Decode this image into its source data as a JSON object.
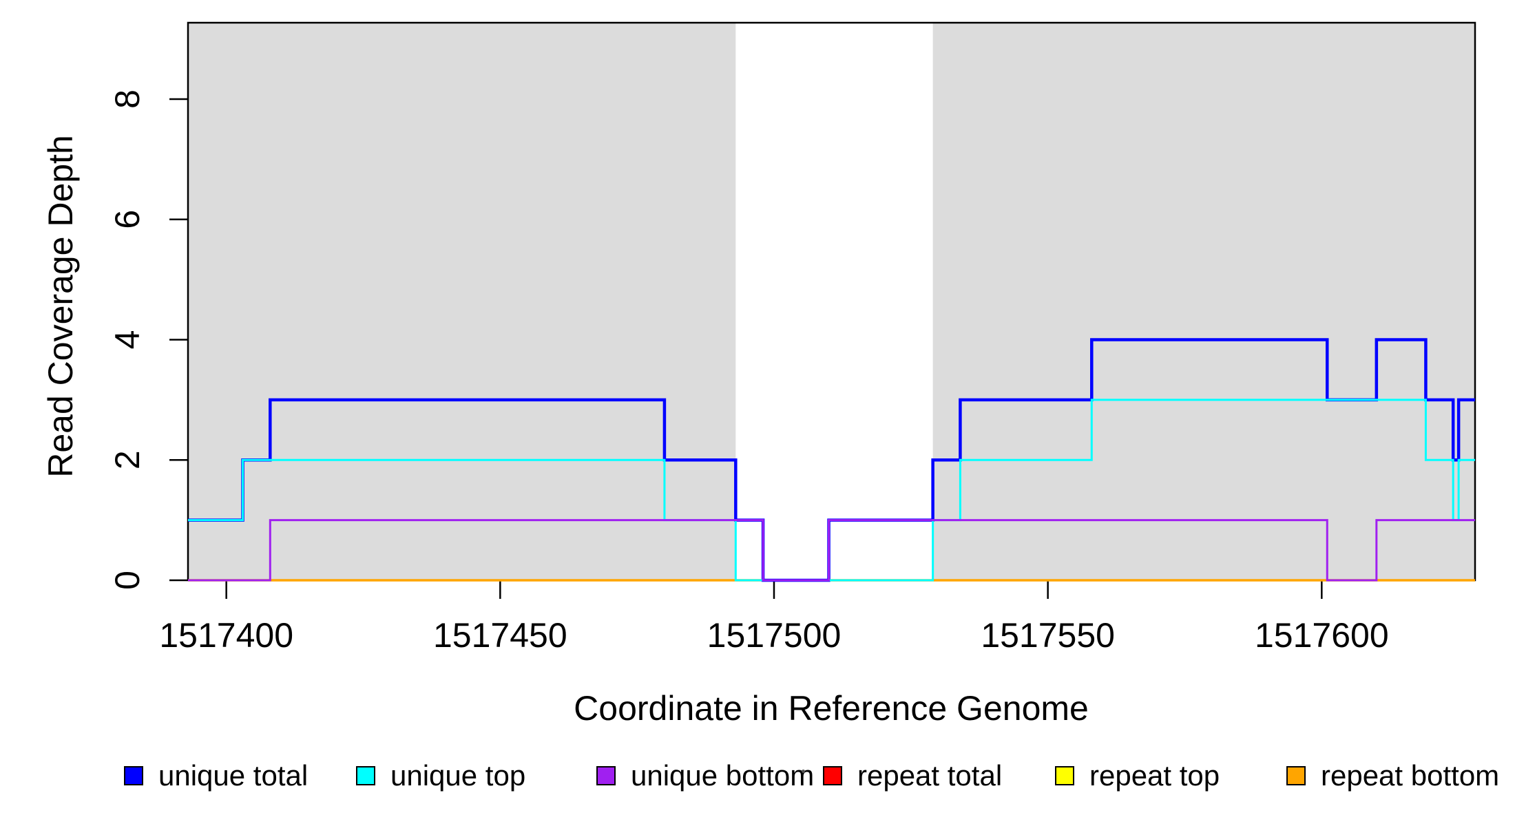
{
  "figure": {
    "background_color": "#FFFFFF",
    "plot_box_color": "#000000",
    "shading_color": "#DCDCDC"
  },
  "legend": {
    "position": "bottom",
    "items": [
      {
        "label": "unique total",
        "color": "#0000FF"
      },
      {
        "label": "unique top",
        "color": "#00FFFF"
      },
      {
        "label": "unique bottom",
        "color": "#A020F0"
      },
      {
        "label": "repeat total",
        "color": "#FF0000"
      },
      {
        "label": "repeat top",
        "color": "#FFFF00"
      },
      {
        "label": "repeat bottom",
        "color": "#FFA500"
      }
    ]
  },
  "chart_data": {
    "type": "line",
    "subtype": "step",
    "title": "",
    "xlabel": "Coordinate in Reference Genome",
    "ylabel": "Read Coverage Depth",
    "xlim": [
      1517393,
      1517628
    ],
    "ylim": [
      0,
      9.27
    ],
    "x_ticks": [
      1517400,
      1517450,
      1517500,
      1517550,
      1517600
    ],
    "y_ticks": [
      0,
      2,
      4,
      6,
      8
    ],
    "grid": false,
    "legend_position": "bottom",
    "shaded_regions": [
      {
        "x0": 1517393,
        "x1": 1517493,
        "color": "#DCDCDC",
        "label": "shaded-region-left"
      },
      {
        "x0": 1517529,
        "x1": 1517628,
        "color": "#DCDCDC",
        "label": "shaded-region-right"
      }
    ],
    "series": [
      {
        "name": "repeat total",
        "color": "#FF0000",
        "width": 3,
        "steps": [
          [
            1517393,
            0
          ]
        ],
        "x_end": 1517628
      },
      {
        "name": "repeat top",
        "color": "#FFFF00",
        "width": 3,
        "steps": [
          [
            1517393,
            0
          ]
        ],
        "x_end": 1517628
      },
      {
        "name": "repeat bottom",
        "color": "#FFA500",
        "width": 3.5,
        "steps": [
          [
            1517393,
            0
          ]
        ],
        "x_end": 1517628
      },
      {
        "name": "unique total",
        "color": "#0000FF",
        "width": 4.5,
        "steps": [
          [
            1517393,
            1
          ],
          [
            1517403,
            2
          ],
          [
            1517408,
            3
          ],
          [
            1517480,
            2
          ],
          [
            1517493,
            1
          ],
          [
            1517498,
            0
          ],
          [
            1517510,
            1
          ],
          [
            1517529,
            2
          ],
          [
            1517534,
            3
          ],
          [
            1517558,
            4
          ],
          [
            1517601,
            3
          ],
          [
            1517610,
            4
          ],
          [
            1517619,
            3
          ],
          [
            1517624,
            2
          ],
          [
            1517625,
            3
          ]
        ],
        "x_end": 1517628
      },
      {
        "name": "unique top",
        "color": "#00FFFF",
        "width": 3,
        "steps": [
          [
            1517393,
            1
          ],
          [
            1517403,
            2
          ],
          [
            1517480,
            1
          ],
          [
            1517493,
            0
          ],
          [
            1517529,
            1
          ],
          [
            1517534,
            2
          ],
          [
            1517558,
            3
          ],
          [
            1517619,
            2
          ],
          [
            1517624,
            1
          ],
          [
            1517625,
            2
          ]
        ],
        "x_end": 1517628
      },
      {
        "name": "unique bottom",
        "color": "#A020F0",
        "width": 3,
        "steps": [
          [
            1517393,
            0
          ],
          [
            1517408,
            1
          ],
          [
            1517498,
            0
          ],
          [
            1517510,
            1
          ],
          [
            1517601,
            0
          ],
          [
            1517610,
            1
          ]
        ],
        "x_end": 1517628
      }
    ]
  }
}
